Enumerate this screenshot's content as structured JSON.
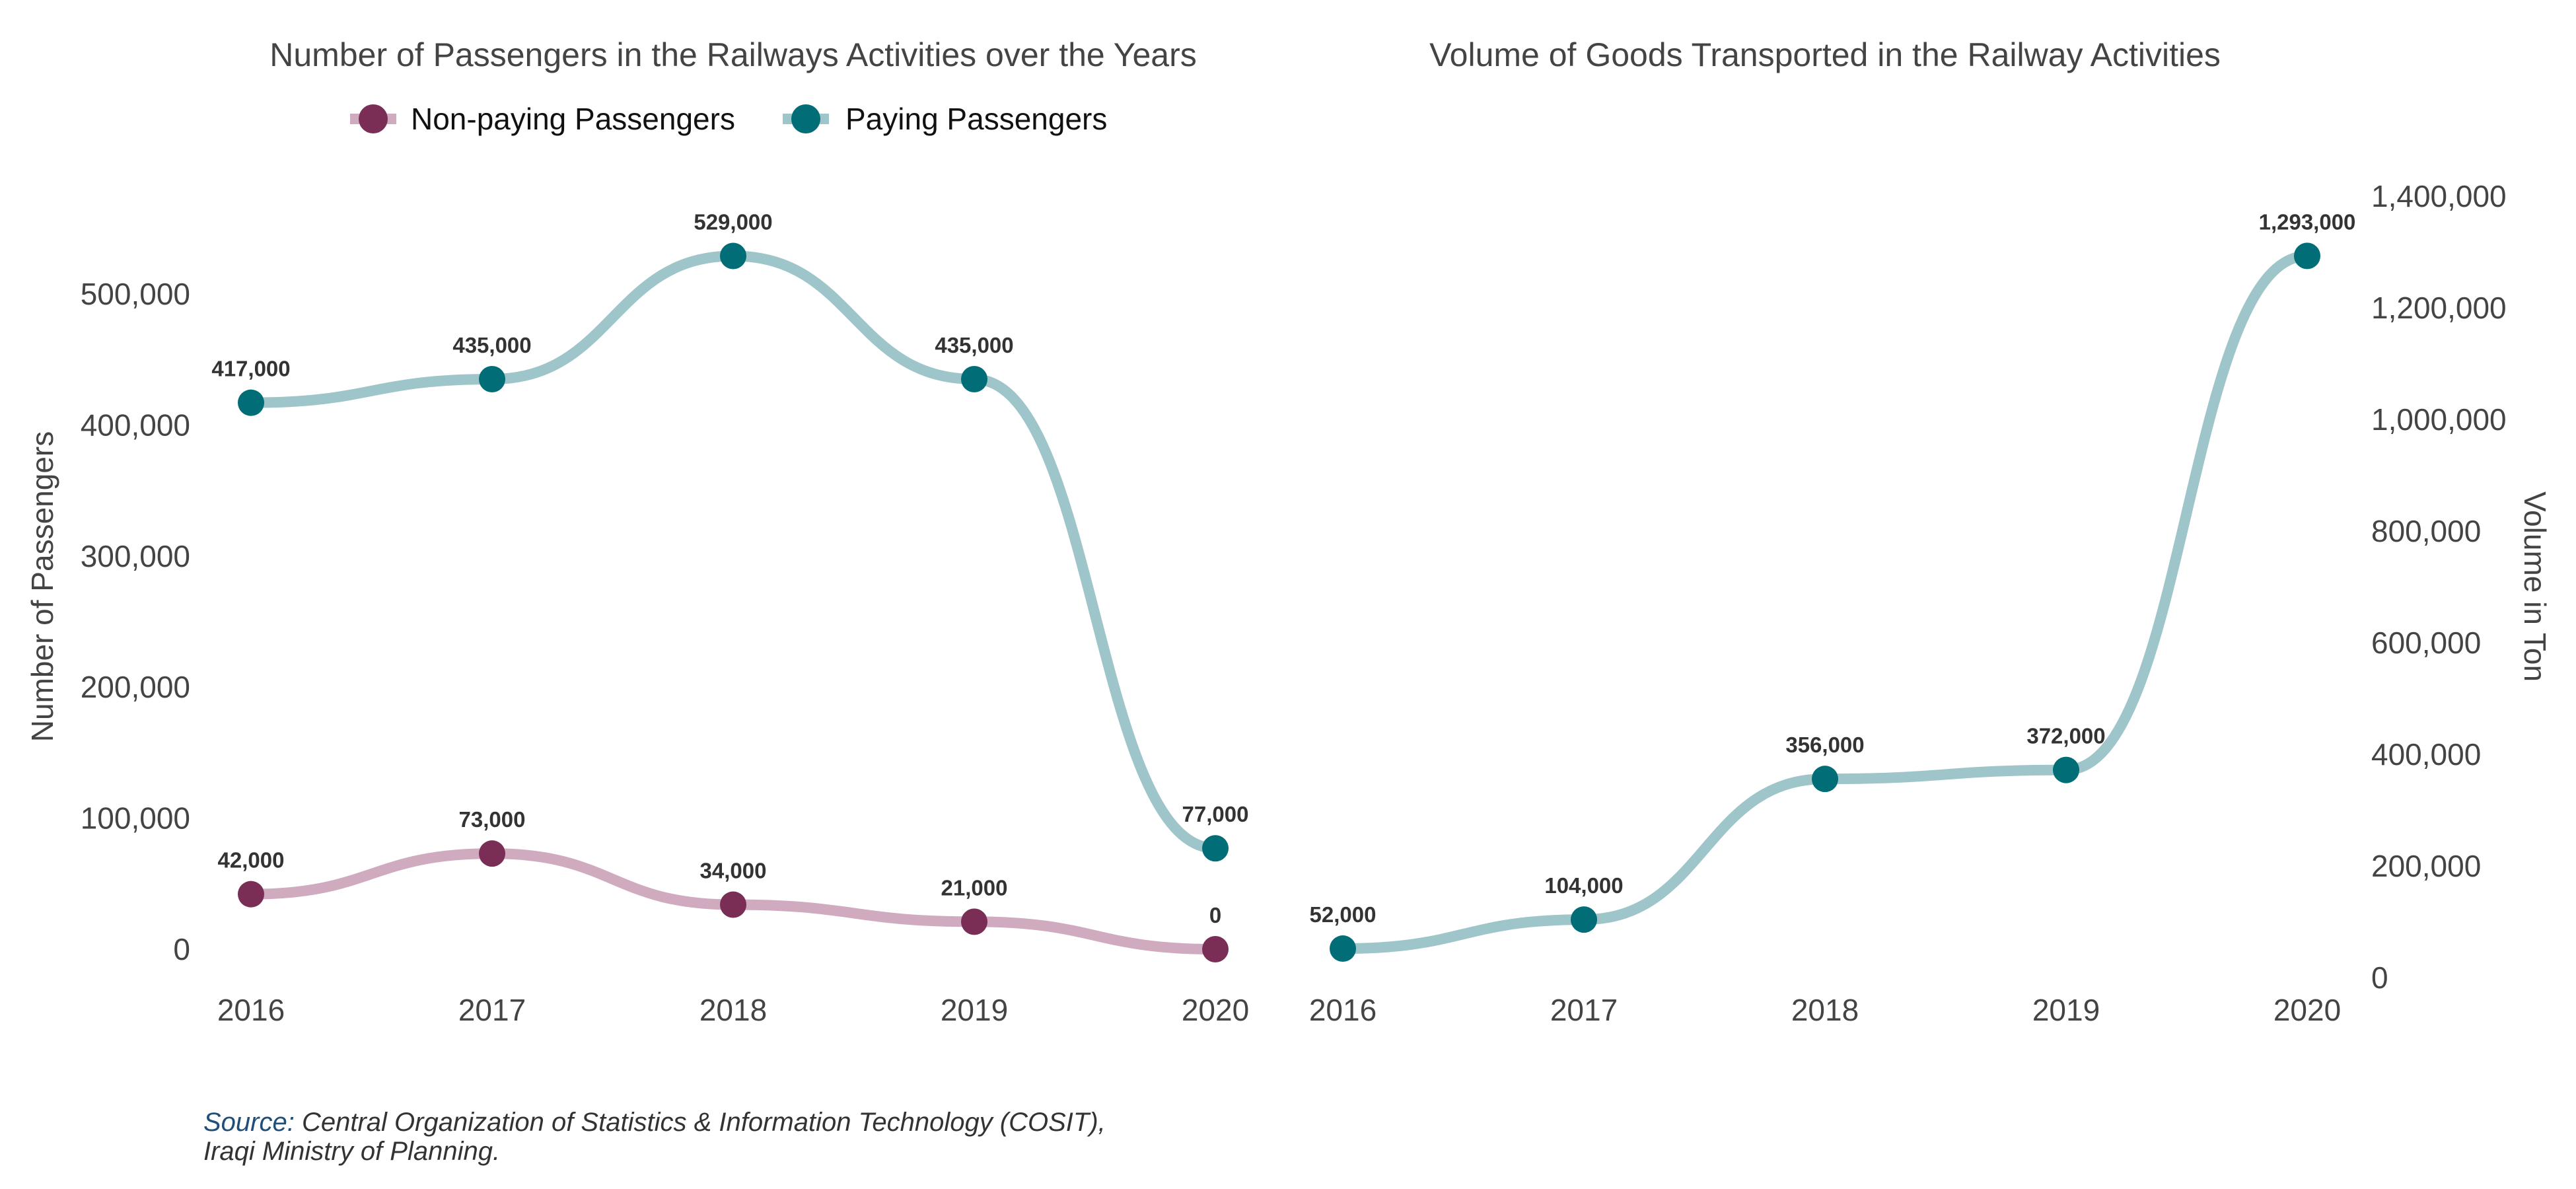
{
  "colors": {
    "paying": "#006d77",
    "paying_line": "#9ec5ca",
    "nonpaying": "#7a2e55",
    "nonpaying_line": "#d0aabf",
    "text": "#444444",
    "label": "#333333"
  },
  "chart_data": [
    {
      "type": "line",
      "title": "Number of Passengers in the Railways Activities over the Years",
      "xlabel": "",
      "ylabel": "Number of Passengers",
      "categories": [
        "2016",
        "2017",
        "2018",
        "2019",
        "2020"
      ],
      "series": [
        {
          "name": "Non-paying Passengers",
          "values": [
            42000,
            73000,
            34000,
            21000,
            0
          ],
          "labels": [
            "42,000",
            "73,000",
            "34,000",
            "21,000",
            "0"
          ]
        },
        {
          "name": "Paying Passengers",
          "values": [
            417000,
            435000,
            529000,
            435000,
            77000
          ],
          "labels": [
            "417,000",
            "435,000",
            "529,000",
            "435,000",
            "77,000"
          ]
        }
      ],
      "yticks": [
        0,
        100000,
        200000,
        300000,
        400000,
        500000
      ],
      "ytick_labels": [
        "0",
        "100,000",
        "200,000",
        "300,000",
        "400,000",
        "500,000"
      ],
      "ylim": [
        -20000,
        560000
      ],
      "legend_position": "top",
      "grid": false
    },
    {
      "type": "line",
      "title": "Volume of Goods Transported in the Railway Activities",
      "xlabel": "",
      "ylabel": "Volume in Ton",
      "categories": [
        "2016",
        "2017",
        "2018",
        "2019",
        "2020"
      ],
      "series": [
        {
          "values": [
            52000,
            104000,
            356000,
            372000,
            1293000
          ],
          "labels": [
            "52,000",
            "104,000",
            "356,000",
            "372,000",
            "1,293,000"
          ]
        }
      ],
      "yticks": [
        0,
        200000,
        400000,
        600000,
        800000,
        1000000,
        1200000,
        1400000
      ],
      "ytick_labels": [
        "0",
        "200,000",
        "400,000",
        "600,000",
        "800,000",
        "1,000,000",
        "1,200,000",
        "1,400,000"
      ],
      "ylim": [
        0,
        1400000
      ],
      "yaxis_side": "right",
      "grid": false
    }
  ],
  "source": {
    "label": "Source:",
    "line1": " Central Organization of Statistics & Information Technology (COSIT),",
    "line2": "Iraqi Ministry of Planning."
  }
}
